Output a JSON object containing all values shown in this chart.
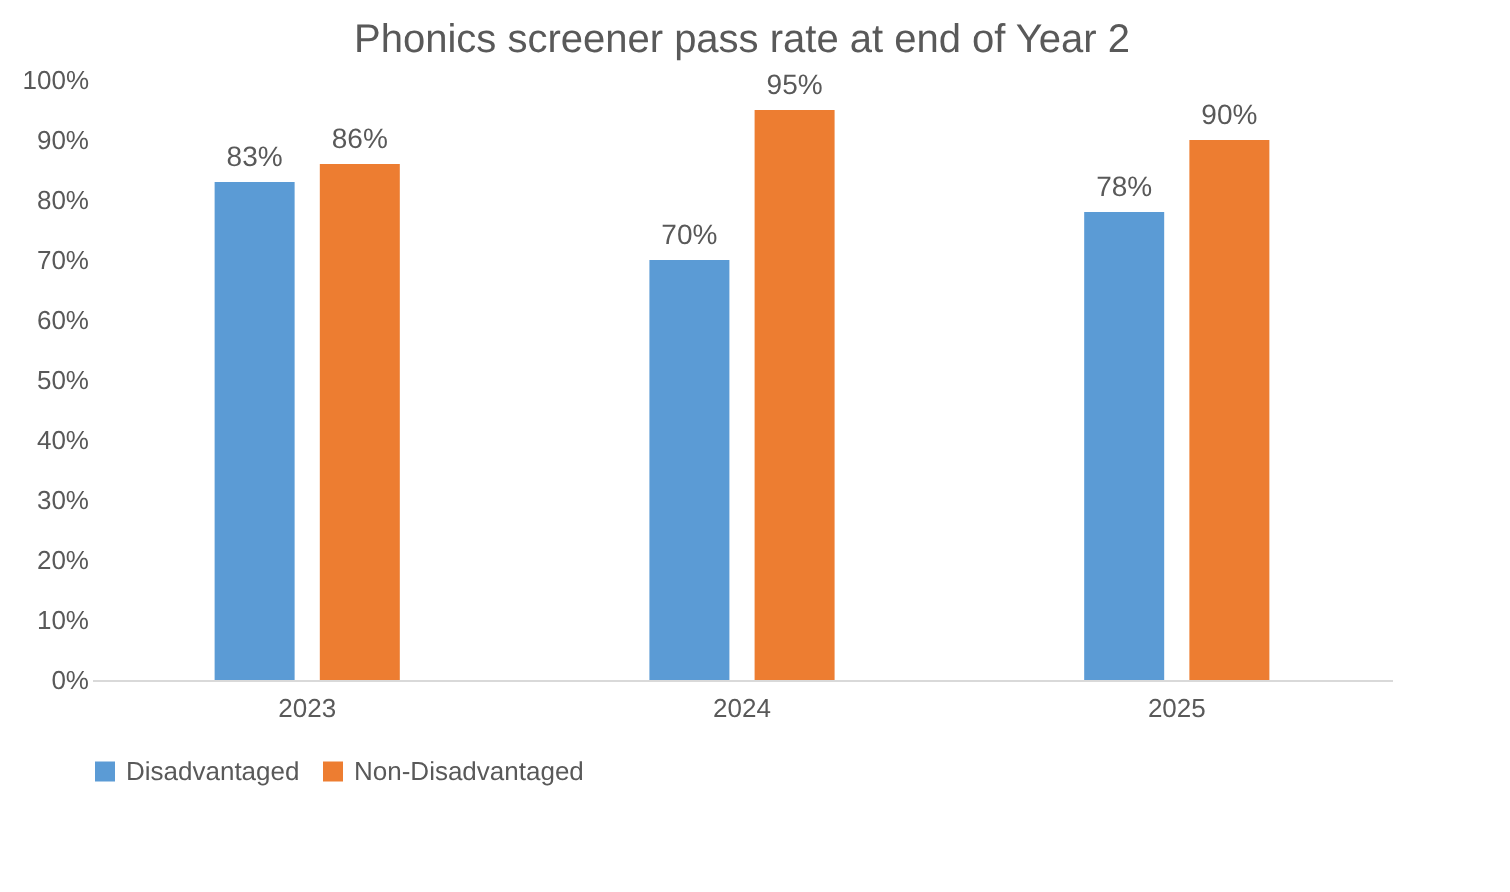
{
  "chart_data": {
    "type": "bar",
    "title": "Phonics screener pass rate at end of Year 2",
    "categories": [
      "2023",
      "2024",
      "2025"
    ],
    "series": [
      {
        "name": "Disadvantaged",
        "color": "#5b9bd5",
        "values": [
          83,
          70,
          78
        ],
        "value_labels": [
          "83%",
          "70%",
          "78%"
        ]
      },
      {
        "name": "Non-Disadvantaged",
        "color": "#ed7d31",
        "values": [
          86,
          95,
          90
        ],
        "value_labels": [
          "86%",
          "95%",
          "90%"
        ]
      }
    ],
    "ylim": [
      0,
      100
    ],
    "yticks": [
      {
        "value": 0,
        "label": "0%"
      },
      {
        "value": 10,
        "label": "10%"
      },
      {
        "value": 20,
        "label": "20%"
      },
      {
        "value": 30,
        "label": "30%"
      },
      {
        "value": 40,
        "label": "40%"
      },
      {
        "value": 50,
        "label": "50%"
      },
      {
        "value": 60,
        "label": "60%"
      },
      {
        "value": 70,
        "label": "70%"
      },
      {
        "value": 80,
        "label": "80%"
      },
      {
        "value": 90,
        "label": "90%"
      },
      {
        "value": 100,
        "label": "100%"
      }
    ],
    "grid": false,
    "legend": "bottom"
  }
}
